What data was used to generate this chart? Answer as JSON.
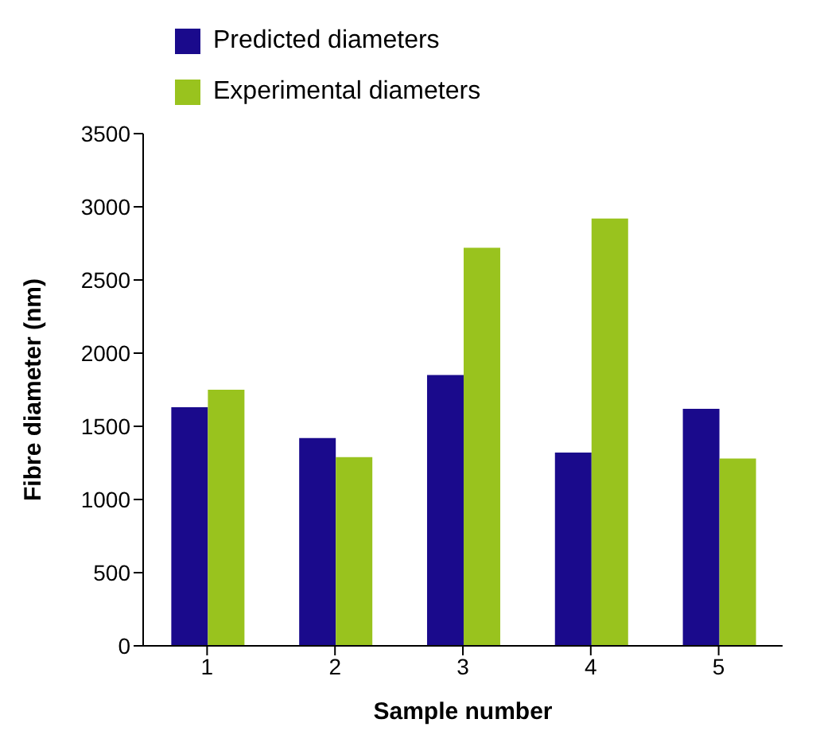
{
  "chart_data": {
    "type": "bar",
    "xlabel": "Sample number",
    "ylabel": "Fibre diameter (nm)",
    "categories": [
      "1",
      "2",
      "3",
      "4",
      "5"
    ],
    "series": [
      {
        "name": "Predicted diameters",
        "color": "#1a0a8c",
        "values": [
          1630,
          1420,
          1850,
          1320,
          1620
        ]
      },
      {
        "name": "Experimental diameters",
        "color": "#99c31e",
        "values": [
          1750,
          1290,
          2720,
          2920,
          1280
        ]
      }
    ],
    "ylim": [
      0,
      3500
    ],
    "yticks": [
      0,
      500,
      1000,
      1500,
      2000,
      2500,
      3000,
      3500
    ],
    "grid": false,
    "legend": "top left"
  }
}
